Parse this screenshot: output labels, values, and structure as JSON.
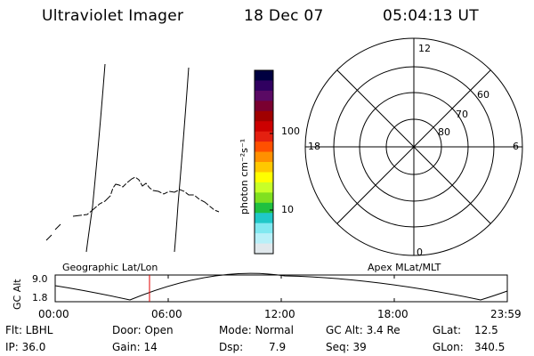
{
  "header": {
    "title": "Ultraviolet Imager",
    "date": "18 Dec 07",
    "time": "05:04:13 UT"
  },
  "colorbar": {
    "unit_label": "photon cm⁻²s⁻¹",
    "ticks": [
      "100",
      "10"
    ],
    "colors": [
      "#000040",
      "#300060",
      "#5a0a64",
      "#7a0030",
      "#a00000",
      "#cc0000",
      "#e42010",
      "#ff5000",
      "#ff9000",
      "#ffc800",
      "#ffff00",
      "#c8ff28",
      "#80e020",
      "#20c040",
      "#20c8c8",
      "#80e8f0",
      "#b8f0f8",
      "#e0e8ec"
    ]
  },
  "polar": {
    "mlt_labels": {
      "top": "12",
      "left": "18",
      "right": "6",
      "bottom": "0"
    },
    "lat_labels": [
      "60",
      "70",
      "80"
    ]
  },
  "timeline": {
    "left_label": "Geographic Lat/Lon",
    "right_label": "Apex MLat/MLT",
    "axis_label": "GC Alt",
    "ytick_top": "9.0",
    "ytick_bottom": "1.8",
    "xticks": [
      "00:00",
      "06:00",
      "12:00",
      "18:00",
      "23:59"
    ],
    "marker_color": "#e00000"
  },
  "info": {
    "filter": "Flt: LBHL",
    "ip": "IP: 36.0",
    "door": "Door: Open",
    "gain": "Gain: 14",
    "mode": "Mode: Normal",
    "dsp_label": "Dsp:",
    "dsp_value": "7.9",
    "gc_alt": "GC Alt: 3.4 Re",
    "seq": "Seq: 39",
    "glat_label": "GLat:",
    "glat_value": "12.5",
    "glon_label": "GLon:",
    "glon_value": "340.5"
  }
}
